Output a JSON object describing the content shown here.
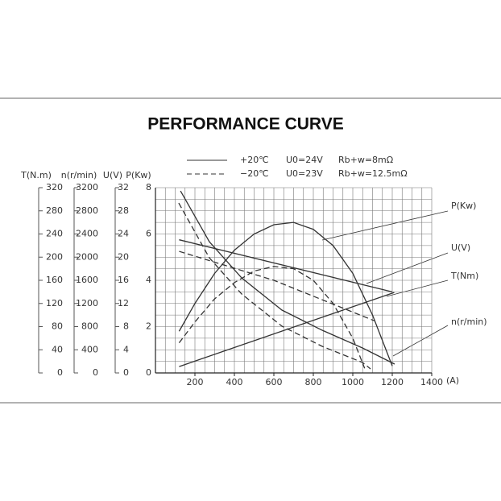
{
  "chart_data": {
    "type": "line",
    "title": "PERFORMANCE CURVE",
    "xlabel": "(A)",
    "xlim": [
      0,
      1400
    ],
    "xticks": [
      200,
      400,
      600,
      800,
      1000,
      1200,
      1400
    ],
    "ylabel": "P(Kw)",
    "ylim": [
      0,
      8
    ],
    "yticks": [
      0,
      2,
      4,
      6,
      8
    ],
    "y2label": "T(N.m)",
    "y2lim": [
      0,
      320
    ],
    "y2ticks": [
      0,
      40,
      80,
      120,
      160,
      200,
      240,
      280,
      320
    ],
    "y3label": "n(r/min)",
    "y3lim": [
      0,
      3200
    ],
    "y3ticks": [
      0,
      400,
      800,
      1200,
      1600,
      2000,
      2400,
      2800,
      3200
    ],
    "y4label": "U(V)",
    "y4lim": [
      0,
      32
    ],
    "y4ticks": [
      0,
      4,
      8,
      12,
      16,
      20,
      24,
      28,
      32
    ],
    "grid": true,
    "x_grid_step": 50,
    "y_grid_step": 0.5,
    "legend": [
      {
        "style": "solid",
        "texts": [
          "+20℃",
          "U0=24V",
          "Rb+w=8mΩ"
        ]
      },
      {
        "style": "dashed",
        "texts": [
          "−20℃",
          "U0=23V",
          "Rb+w=12.5mΩ"
        ]
      }
    ],
    "series": [
      {
        "name": "P(Kw)",
        "axis": "y",
        "style": "solid",
        "color": "#333333",
        "x": [
          120,
          200,
          300,
          400,
          500,
          600,
          700,
          800,
          900,
          1000,
          1100,
          1200
        ],
        "values": [
          1.8,
          3.0,
          4.3,
          5.3,
          6.0,
          6.4,
          6.5,
          6.2,
          5.5,
          4.3,
          2.5,
          0.3
        ]
      },
      {
        "axis": "y",
        "style": "dashed",
        "color": "#333333",
        "x": [
          120,
          200,
          300,
          400,
          500,
          600,
          700,
          800,
          900,
          1000,
          1060
        ],
        "values": [
          1.3,
          2.2,
          3.2,
          3.9,
          4.4,
          4.6,
          4.5,
          4.0,
          3.0,
          1.5,
          0.2
        ]
      },
      {
        "name": "U(V)",
        "axis": "y4",
        "style": "solid",
        "color": "#333333",
        "x": [
          120,
          1200
        ],
        "values": [
          23,
          14
        ]
      },
      {
        "axis": "y4",
        "style": "dashed",
        "color": "#333333",
        "x": [
          120,
          600,
          1110
        ],
        "values": [
          21,
          16,
          9
        ]
      },
      {
        "name": "T(Nm)",
        "axis": "y2",
        "style": "solid",
        "color": "#333333",
        "x": [
          120,
          1210
        ],
        "values": [
          11,
          139
        ]
      },
      {
        "name": "n(r/min)",
        "axis": "y3",
        "style": "solid",
        "color": "#333333",
        "x": [
          127,
          273,
          437,
          641,
          845,
          1049,
          1212
        ],
        "values": [
          3144,
          2267,
          1641,
          1085,
          737,
          431,
          153
        ]
      },
      {
        "axis": "y3",
        "style": "dashed",
        "color": "#333333",
        "x": [
          118,
          273,
          437,
          641,
          845,
          1049,
          1090
        ],
        "values": [
          2935,
          1989,
          1363,
          807,
          459,
          181,
          70
        ]
      }
    ]
  }
}
